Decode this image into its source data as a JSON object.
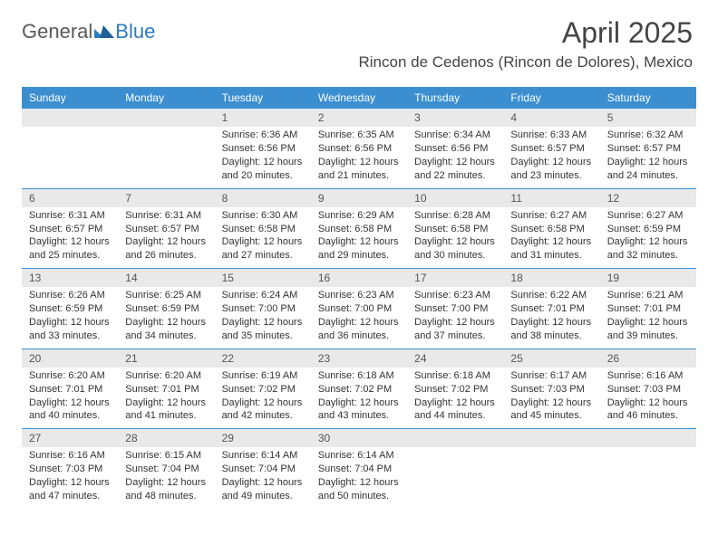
{
  "logo": {
    "text1": "General",
    "text2": "Blue"
  },
  "header": {
    "month_title": "April 2025",
    "location": "Rincon de Cedenos (Rincon de Dolores), Mexico"
  },
  "colors": {
    "header_bg": "#3b8fd1",
    "header_text": "#ffffff",
    "daynum_bg": "#e9e9e9",
    "week_border": "#3b8fd1",
    "logo_gray": "#5a5a5a",
    "logo_blue": "#2b7bbf"
  },
  "day_names": [
    "Sunday",
    "Monday",
    "Tuesday",
    "Wednesday",
    "Thursday",
    "Friday",
    "Saturday"
  ],
  "weeks": [
    [
      null,
      null,
      {
        "n": "1",
        "sunrise": "6:36 AM",
        "sunset": "6:56 PM",
        "daylight": "12 hours and 20 minutes."
      },
      {
        "n": "2",
        "sunrise": "6:35 AM",
        "sunset": "6:56 PM",
        "daylight": "12 hours and 21 minutes."
      },
      {
        "n": "3",
        "sunrise": "6:34 AM",
        "sunset": "6:56 PM",
        "daylight": "12 hours and 22 minutes."
      },
      {
        "n": "4",
        "sunrise": "6:33 AM",
        "sunset": "6:57 PM",
        "daylight": "12 hours and 23 minutes."
      },
      {
        "n": "5",
        "sunrise": "6:32 AM",
        "sunset": "6:57 PM",
        "daylight": "12 hours and 24 minutes."
      }
    ],
    [
      {
        "n": "6",
        "sunrise": "6:31 AM",
        "sunset": "6:57 PM",
        "daylight": "12 hours and 25 minutes."
      },
      {
        "n": "7",
        "sunrise": "6:31 AM",
        "sunset": "6:57 PM",
        "daylight": "12 hours and 26 minutes."
      },
      {
        "n": "8",
        "sunrise": "6:30 AM",
        "sunset": "6:58 PM",
        "daylight": "12 hours and 27 minutes."
      },
      {
        "n": "9",
        "sunrise": "6:29 AM",
        "sunset": "6:58 PM",
        "daylight": "12 hours and 29 minutes."
      },
      {
        "n": "10",
        "sunrise": "6:28 AM",
        "sunset": "6:58 PM",
        "daylight": "12 hours and 30 minutes."
      },
      {
        "n": "11",
        "sunrise": "6:27 AM",
        "sunset": "6:58 PM",
        "daylight": "12 hours and 31 minutes."
      },
      {
        "n": "12",
        "sunrise": "6:27 AM",
        "sunset": "6:59 PM",
        "daylight": "12 hours and 32 minutes."
      }
    ],
    [
      {
        "n": "13",
        "sunrise": "6:26 AM",
        "sunset": "6:59 PM",
        "daylight": "12 hours and 33 minutes."
      },
      {
        "n": "14",
        "sunrise": "6:25 AM",
        "sunset": "6:59 PM",
        "daylight": "12 hours and 34 minutes."
      },
      {
        "n": "15",
        "sunrise": "6:24 AM",
        "sunset": "7:00 PM",
        "daylight": "12 hours and 35 minutes."
      },
      {
        "n": "16",
        "sunrise": "6:23 AM",
        "sunset": "7:00 PM",
        "daylight": "12 hours and 36 minutes."
      },
      {
        "n": "17",
        "sunrise": "6:23 AM",
        "sunset": "7:00 PM",
        "daylight": "12 hours and 37 minutes."
      },
      {
        "n": "18",
        "sunrise": "6:22 AM",
        "sunset": "7:01 PM",
        "daylight": "12 hours and 38 minutes."
      },
      {
        "n": "19",
        "sunrise": "6:21 AM",
        "sunset": "7:01 PM",
        "daylight": "12 hours and 39 minutes."
      }
    ],
    [
      {
        "n": "20",
        "sunrise": "6:20 AM",
        "sunset": "7:01 PM",
        "daylight": "12 hours and 40 minutes."
      },
      {
        "n": "21",
        "sunrise": "6:20 AM",
        "sunset": "7:01 PM",
        "daylight": "12 hours and 41 minutes."
      },
      {
        "n": "22",
        "sunrise": "6:19 AM",
        "sunset": "7:02 PM",
        "daylight": "12 hours and 42 minutes."
      },
      {
        "n": "23",
        "sunrise": "6:18 AM",
        "sunset": "7:02 PM",
        "daylight": "12 hours and 43 minutes."
      },
      {
        "n": "24",
        "sunrise": "6:18 AM",
        "sunset": "7:02 PM",
        "daylight": "12 hours and 44 minutes."
      },
      {
        "n": "25",
        "sunrise": "6:17 AM",
        "sunset": "7:03 PM",
        "daylight": "12 hours and 45 minutes."
      },
      {
        "n": "26",
        "sunrise": "6:16 AM",
        "sunset": "7:03 PM",
        "daylight": "12 hours and 46 minutes."
      }
    ],
    [
      {
        "n": "27",
        "sunrise": "6:16 AM",
        "sunset": "7:03 PM",
        "daylight": "12 hours and 47 minutes."
      },
      {
        "n": "28",
        "sunrise": "6:15 AM",
        "sunset": "7:04 PM",
        "daylight": "12 hours and 48 minutes."
      },
      {
        "n": "29",
        "sunrise": "6:14 AM",
        "sunset": "7:04 PM",
        "daylight": "12 hours and 49 minutes."
      },
      {
        "n": "30",
        "sunrise": "6:14 AM",
        "sunset": "7:04 PM",
        "daylight": "12 hours and 50 minutes."
      },
      null,
      null,
      null
    ]
  ]
}
